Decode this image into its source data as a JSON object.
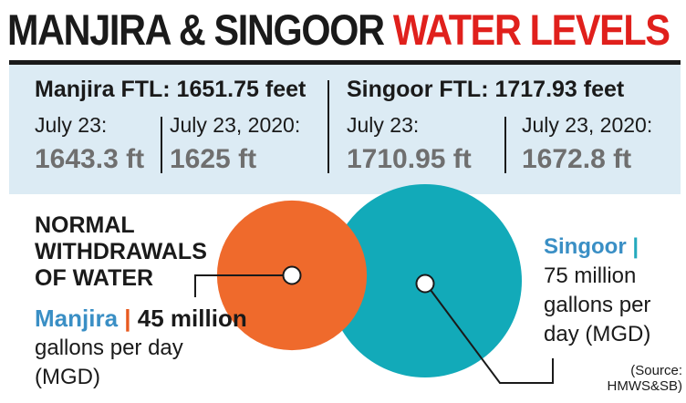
{
  "header": {
    "title_part1": "MANJIRA & SINGOOR",
    "title_part2": "WATER LEVELS"
  },
  "levels": {
    "manjira": {
      "ftl": "Manjira FTL: 1651.75 feet",
      "current_label": "July 23:",
      "current_value": "1643.3 ft",
      "previous_label": "July 23, 2020:",
      "previous_value": "1625 ft"
    },
    "singoor": {
      "ftl": "Singoor FTL: 1717.93 feet",
      "current_label": "July 23:",
      "current_value": "1710.95 ft",
      "previous_label": "July 23, 2020:",
      "previous_value": "1672.8 ft"
    }
  },
  "withdrawals": {
    "heading_line1": "NORMAL",
    "heading_line2": "WITHDRAWALS",
    "heading_line3": "OF WATER",
    "manjira_name": "Manjira",
    "manjira_sep": "|",
    "manjira_value": "45 million",
    "manjira_unit_line1": "gallons per day",
    "manjira_unit_line2": "(MGD)",
    "singoor_name": "Singoor",
    "singoor_sep": "|",
    "singoor_line1": "75 million",
    "singoor_line2": "gallons per",
    "singoor_line3": "day (MGD)"
  },
  "source": {
    "line1": "(Source:",
    "line2": "HMWS&SB)"
  },
  "colors": {
    "title_accent": "#e0201c",
    "panel_bg": "#dcebf4",
    "manjira_circle": "#ef6a2c",
    "singoor_circle": "#12aab9",
    "name_blue": "#3a8fc5"
  },
  "chart_data": {
    "type": "bubble",
    "unit": "million gallons per day (MGD)",
    "categories": [
      "Manjira",
      "Singoor"
    ],
    "values": [
      45,
      75
    ]
  }
}
